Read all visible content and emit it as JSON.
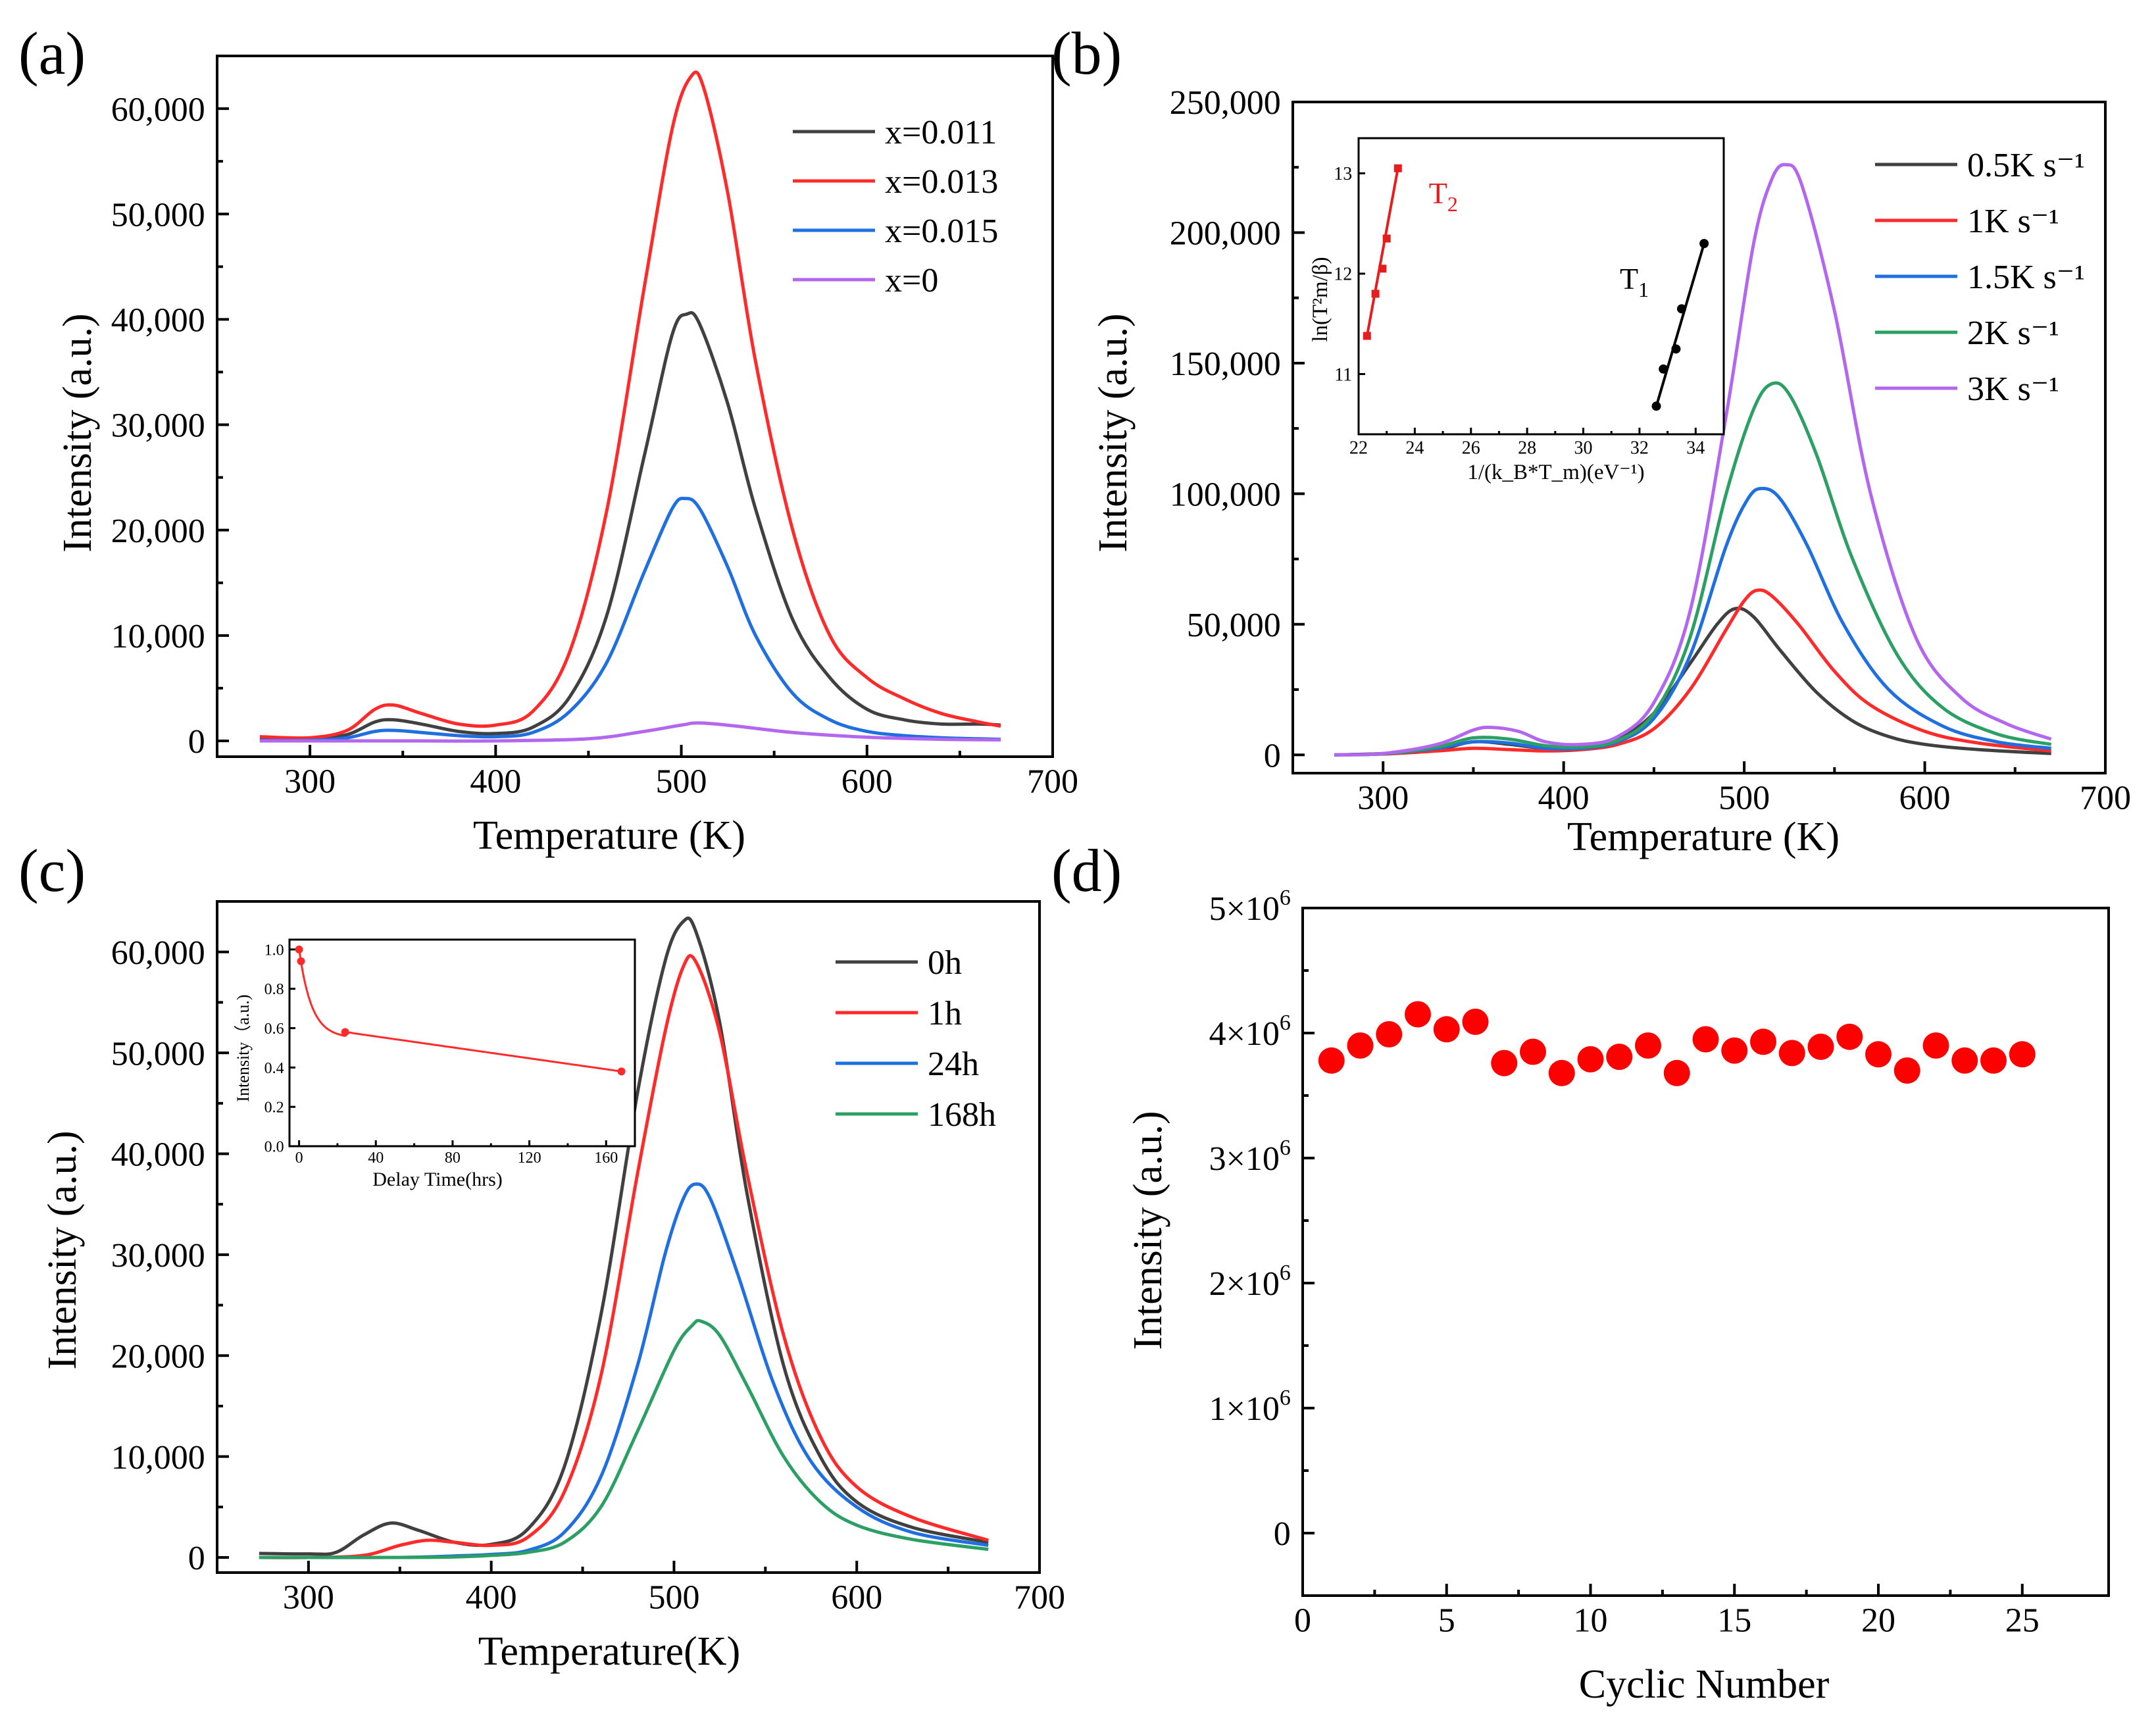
{
  "figure": {
    "panel_labels": [
      "(a)",
      "(b)",
      "(c)",
      "(d)"
    ]
  },
  "chart_data": [
    {
      "id": "a",
      "type": "line",
      "xlabel": "Temperature (K)",
      "ylabel": "Intensity (a.u.)",
      "xlim": [
        250,
        700
      ],
      "ylim": [
        -1500,
        65000
      ],
      "xticks": [
        300,
        400,
        500,
        600,
        700
      ],
      "xtick_labels": [
        "300",
        "400",
        "500",
        "600",
        "700"
      ],
      "yticks": [
        0,
        10000,
        20000,
        30000,
        40000,
        50000,
        60000
      ],
      "ytick_labels": [
        "0",
        "10,000",
        "20,000",
        "30,000",
        "40,000",
        "50,000",
        "60,000"
      ],
      "legend_position": "top-right",
      "series": [
        {
          "name": "x=0.011",
          "color": "#404040",
          "x": [
            273,
            300,
            320,
            335,
            345,
            360,
            380,
            400,
            420,
            440,
            460,
            480,
            495,
            503,
            510,
            525,
            540,
            560,
            580,
            600,
            620,
            640,
            660,
            672
          ],
          "y": [
            200,
            220,
            600,
            1800,
            2000,
            1600,
            900,
            700,
            1300,
            4200,
            12000,
            27000,
            38500,
            40500,
            39500,
            32000,
            22000,
            11500,
            6000,
            3000,
            2000,
            1600,
            1600,
            1500
          ]
        },
        {
          "name": "x=0.013",
          "color": "#ff2a2a",
          "x": [
            273,
            300,
            320,
            335,
            345,
            360,
            380,
            400,
            420,
            440,
            460,
            480,
            495,
            505,
            512,
            525,
            540,
            560,
            580,
            600,
            620,
            640,
            660,
            672
          ],
          "y": [
            400,
            300,
            1000,
            3000,
            3400,
            2600,
            1600,
            1500,
            2800,
            8500,
            22000,
            43000,
            58000,
            63000,
            62000,
            52000,
            36000,
            20000,
            10000,
            6000,
            4000,
            2600,
            1800,
            1400
          ]
        },
        {
          "name": "x=0.015",
          "color": "#1f6fe0",
          "x": [
            273,
            300,
            320,
            335,
            345,
            360,
            380,
            400,
            420,
            440,
            460,
            480,
            495,
            502,
            510,
            525,
            540,
            560,
            580,
            600,
            620,
            640,
            660,
            672
          ],
          "y": [
            50,
            60,
            300,
            900,
            1000,
            800,
            500,
            400,
            800,
            2800,
            7500,
            16000,
            22000,
            23000,
            22000,
            16500,
            10000,
            4500,
            2000,
            900,
            500,
            300,
            200,
            150
          ]
        },
        {
          "name": "x=0",
          "color": "#b366ee",
          "x": [
            273,
            300,
            350,
            400,
            450,
            480,
            500,
            510,
            530,
            560,
            600,
            640,
            672
          ],
          "y": [
            0,
            0,
            0,
            0,
            200,
            900,
            1500,
            1700,
            1400,
            800,
            350,
            150,
            100
          ]
        }
      ]
    },
    {
      "id": "b",
      "type": "line",
      "xlabel": "Temperature (K)",
      "ylabel": "Intensity (a.u.)",
      "xlim": [
        250,
        700
      ],
      "ylim": [
        -7000,
        250000
      ],
      "xticks": [
        300,
        400,
        500,
        600,
        700
      ],
      "xtick_labels": [
        "300",
        "400",
        "500",
        "600",
        "700"
      ],
      "yticks": [
        0,
        50000,
        100000,
        150000,
        200000,
        250000
      ],
      "ytick_labels": [
        "0",
        "50,000",
        "100,000",
        "150,000",
        "200,000",
        "250,000"
      ],
      "legend_position": "top-right",
      "series": [
        {
          "name": "0.5K s⁻¹",
          "color": "#404040",
          "x": [
            273,
            300,
            330,
            350,
            370,
            390,
            410,
            430,
            450,
            470,
            485,
            495,
            505,
            520,
            540,
            560,
            580,
            600,
            630,
            670
          ],
          "y": [
            0,
            500,
            2000,
            5000,
            4000,
            2500,
            3000,
            6000,
            16000,
            35000,
            50000,
            56000,
            53000,
            40000,
            24000,
            13000,
            7000,
            4000,
            2000,
            500
          ]
        },
        {
          "name": "1K s⁻¹",
          "color": "#ff2a2a",
          "x": [
            273,
            300,
            330,
            350,
            370,
            390,
            410,
            430,
            450,
            470,
            490,
            500,
            507,
            515,
            530,
            550,
            570,
            600,
            630,
            670
          ],
          "y": [
            0,
            300,
            1500,
            2500,
            2000,
            1500,
            2000,
            4000,
            10000,
            25000,
            48000,
            59000,
            63000,
            61000,
            50000,
            32000,
            19000,
            9000,
            4500,
            1500
          ]
        },
        {
          "name": "1.5K s⁻¹",
          "color": "#1f6fe0",
          "x": [
            273,
            300,
            330,
            350,
            370,
            390,
            410,
            430,
            450,
            470,
            490,
            502,
            510,
            520,
            535,
            555,
            580,
            610,
            640,
            670
          ],
          "y": [
            0,
            400,
            2500,
            5000,
            4500,
            2500,
            2500,
            5000,
            14000,
            38000,
            80000,
            98000,
            102000,
            98000,
            80000,
            50000,
            25000,
            11000,
            5000,
            2500
          ]
        },
        {
          "name": "2K s⁻¹",
          "color": "#2ca064",
          "x": [
            273,
            300,
            330,
            350,
            370,
            390,
            410,
            430,
            450,
            470,
            490,
            505,
            515,
            525,
            540,
            560,
            585,
            610,
            640,
            670
          ],
          "y": [
            0,
            400,
            3000,
            6500,
            6000,
            3500,
            3000,
            5500,
            16000,
            45000,
            100000,
            132000,
            142000,
            138000,
            115000,
            75000,
            38000,
            18000,
            8000,
            4000
          ]
        },
        {
          "name": "3K s⁻¹",
          "color": "#b366ee",
          "x": [
            273,
            300,
            330,
            350,
            360,
            375,
            390,
            410,
            430,
            450,
            470,
            490,
            505,
            515,
            523,
            532,
            550,
            570,
            595,
            620,
            645,
            670
          ],
          "y": [
            0,
            500,
            4000,
            9500,
            10500,
            9000,
            5000,
            4000,
            7000,
            20000,
            55000,
            130000,
            195000,
            220000,
            226000,
            218000,
            170000,
            100000,
            45000,
            22000,
            12000,
            6000
          ]
        }
      ],
      "inset": {
        "type": "scatter",
        "xlabel": "1/(k_B*T_m)(eV⁻¹)",
        "ylabel": "ln(T²m/β)",
        "xlim": [
          22,
          35
        ],
        "ylim": [
          10.4,
          13.35
        ],
        "xticks": [
          22,
          24,
          26,
          28,
          30,
          32,
          34
        ],
        "xtick_labels": [
          "22",
          "24",
          "26",
          "28",
          "30",
          "32",
          "34"
        ],
        "yticks": [
          11,
          12,
          13
        ],
        "ytick_labels": [
          "11",
          "12",
          "13"
        ],
        "series": [
          {
            "name": "T2",
            "label_main": "T",
            "label_sub": "2",
            "color": "#e81c1c",
            "marker": "square",
            "x": [
              22.3,
              22.6,
              22.85,
              23.0,
              23.4
            ],
            "y": [
              11.38,
              11.8,
              12.05,
              12.35,
              13.05
            ]
          },
          {
            "name": "T1",
            "label_main": "T",
            "label_sub": "1",
            "color": "#000000",
            "marker": "circle",
            "x": [
              32.6,
              32.85,
              33.3,
              33.5,
              34.3
            ],
            "y": [
              10.68,
              11.05,
              11.25,
              11.65,
              12.3
            ]
          }
        ]
      }
    },
    {
      "id": "c",
      "type": "line",
      "xlabel": "Temperature(K)",
      "ylabel": "Intensity (a.u.)",
      "xlim": [
        250,
        700
      ],
      "ylim": [
        -1500,
        65000
      ],
      "xticks": [
        300,
        400,
        500,
        600,
        700
      ],
      "xtick_labels": [
        "300",
        "400",
        "500",
        "600",
        "700"
      ],
      "yticks": [
        0,
        10000,
        20000,
        30000,
        40000,
        50000,
        60000
      ],
      "ytick_labels": [
        "0",
        "10,000",
        "20,000",
        "30,000",
        "40,000",
        "50,000",
        "60,000"
      ],
      "legend_position": "top-right",
      "series": [
        {
          "name": "0h",
          "color": "#404040",
          "x": [
            273,
            300,
            315,
            330,
            345,
            360,
            380,
            400,
            420,
            440,
            460,
            480,
            495,
            505,
            512,
            525,
            540,
            560,
            580,
            600,
            630,
            672
          ],
          "y": [
            400,
            350,
            500,
            2200,
            3400,
            2700,
            1500,
            1300,
            2800,
            9000,
            24000,
            46000,
            59000,
            63000,
            62000,
            53000,
            36000,
            19000,
            10000,
            5500,
            3000,
            1500
          ]
        },
        {
          "name": "1h",
          "color": "#ff2a2a",
          "x": [
            273,
            300,
            330,
            350,
            365,
            380,
            400,
            420,
            440,
            460,
            480,
            495,
            505,
            512,
            525,
            540,
            560,
            580,
            600,
            630,
            672
          ],
          "y": [
            0,
            0,
            200,
            1200,
            1700,
            1500,
            1200,
            2000,
            6500,
            18000,
            38000,
            52000,
            58500,
            59000,
            52000,
            38000,
            22000,
            12000,
            7000,
            4000,
            1700
          ]
        },
        {
          "name": "24h",
          "color": "#1f6fe0",
          "x": [
            273,
            300,
            350,
            380,
            400,
            420,
            440,
            460,
            480,
            495,
            505,
            512,
            520,
            535,
            555,
            575,
            600,
            630,
            672
          ],
          "y": [
            0,
            0,
            0,
            150,
            300,
            700,
            2500,
            8000,
            19000,
            30000,
            35500,
            37000,
            35500,
            28000,
            17000,
            9500,
            5000,
            2500,
            1200
          ]
        },
        {
          "name": "168h",
          "color": "#2ca064",
          "x": [
            273,
            300,
            350,
            380,
            400,
            420,
            440,
            460,
            480,
            500,
            510,
            515,
            525,
            540,
            560,
            580,
            600,
            630,
            672
          ],
          "y": [
            0,
            0,
            0,
            50,
            200,
            500,
            1500,
            5000,
            12500,
            20500,
            23000,
            23400,
            22000,
            17000,
            10000,
            5500,
            3200,
            1800,
            800
          ]
        }
      ],
      "inset": {
        "type": "line",
        "xlabel": "Delay Time(hrs)",
        "ylabel": "Intensity（a.u.)",
        "xlim": [
          -5,
          175
        ],
        "ylim": [
          0,
          1.05
        ],
        "xticks": [
          0,
          40,
          80,
          120,
          160
        ],
        "xtick_labels": [
          "0",
          "40",
          "80",
          "120",
          "160"
        ],
        "yticks": [
          0,
          0.2,
          0.4,
          0.6,
          0.8,
          1.0
        ],
        "ytick_labels": [
          "0.0",
          "0.2",
          "0.4",
          "0.6",
          "0.8",
          "1.0"
        ],
        "points": {
          "x": [
            0,
            1,
            24,
            168
          ],
          "y": [
            1.0,
            0.94,
            0.58,
            0.38
          ]
        },
        "color": "#ff2a2a"
      }
    },
    {
      "id": "d",
      "type": "scatter",
      "xlabel": "Cyclic Number",
      "ylabel": "Intensity (a.u.)",
      "xlim": [
        0,
        28
      ],
      "ylim": [
        -500000,
        5000000
      ],
      "xticks": [
        0,
        5,
        10,
        15,
        20,
        25
      ],
      "xtick_labels": [
        "0",
        "5",
        "10",
        "15",
        "20",
        "25"
      ],
      "yticks": [
        0,
        1000000,
        2000000,
        3000000,
        4000000,
        5000000
      ],
      "ytick_labels": [
        "0",
        "1×10",
        "2×10",
        "3×10",
        "4×10",
        "5×10"
      ],
      "ytick_exponent": "6",
      "color": "#ff0000",
      "x": [
        1,
        2,
        3,
        4,
        5,
        6,
        7,
        8,
        9,
        10,
        11,
        12,
        13,
        14,
        15,
        16,
        17,
        18,
        19,
        20,
        21,
        22,
        23,
        24,
        25
      ],
      "y": [
        3780000,
        3900000,
        3990000,
        4150000,
        4030000,
        4090000,
        3760000,
        3850000,
        3680000,
        3790000,
        3810000,
        3900000,
        3680000,
        3950000,
        3860000,
        3930000,
        3840000,
        3890000,
        3970000,
        3830000,
        3700000,
        3900000,
        3780000,
        3780000,
        3830000
      ]
    }
  ]
}
